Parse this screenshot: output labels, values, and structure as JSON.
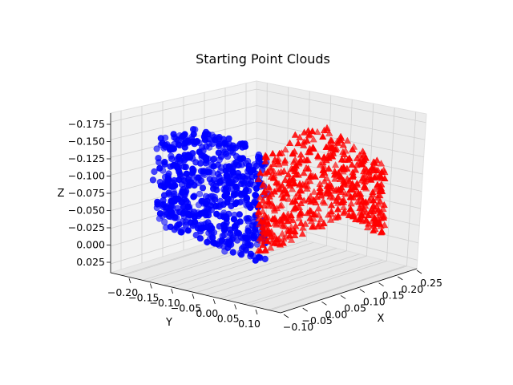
{
  "chart_data": {
    "type": "scatter",
    "projection": "3d",
    "title": "Starting Point Clouds",
    "xlabel": "X",
    "ylabel": "Y",
    "zlabel": "Z",
    "xticks": [
      "−0.10",
      "−0.05",
      "0.00",
      "0.05",
      "0.10",
      "0.15",
      "0.20",
      "0.25"
    ],
    "yticks": [
      "−0.20",
      "−0.15",
      "−0.10",
      "−0.05",
      "0.00",
      "0.05",
      "0.10"
    ],
    "zticks": [
      "−0.175",
      "−0.150",
      "−0.125",
      "−0.100",
      "−0.075",
      "−0.050",
      "−0.025",
      "0.000",
      "0.025"
    ],
    "xlim": [
      -0.12,
      0.27
    ],
    "ylim": [
      -0.22,
      0.12
    ],
    "zlim": [
      -0.185,
      0.035
    ],
    "z_axis_inverted": true,
    "grid": true,
    "series": [
      {
        "marker": "circle",
        "color": "#0000ff",
        "x_range": [
          -0.1,
          0.02
        ],
        "y_range": [
          -0.2,
          0.1
        ],
        "z_range": [
          -0.18,
          0.03
        ]
      },
      {
        "marker": "triangle",
        "color": "#ff0000",
        "x_range": [
          0.0,
          0.26
        ],
        "y_range": [
          -0.05,
          0.1
        ],
        "z_range": [
          -0.17,
          0.02
        ]
      }
    ]
  },
  "colors": {
    "pane_fill": "#f2f2f2",
    "grid": "#cfcfcf",
    "blue": "#0000ff",
    "red": "#ff0000"
  }
}
